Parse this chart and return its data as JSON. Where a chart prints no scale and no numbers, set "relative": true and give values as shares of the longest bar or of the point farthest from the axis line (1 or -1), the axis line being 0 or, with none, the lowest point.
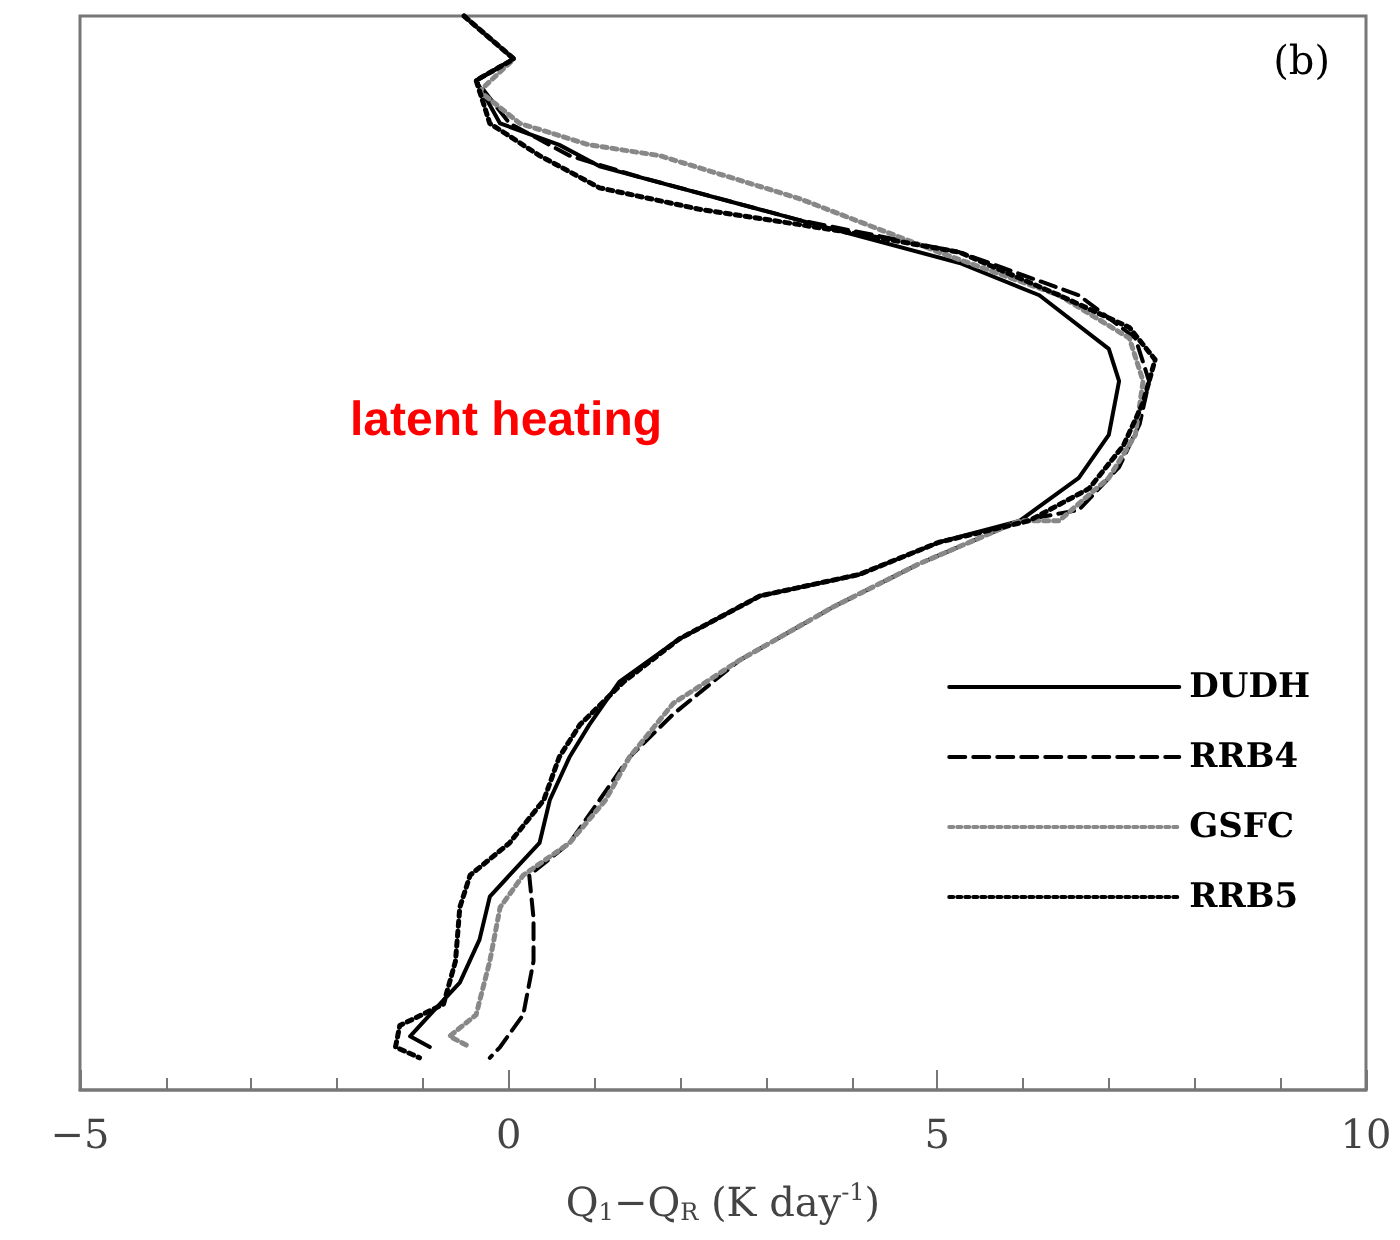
{
  "chart_data": {
    "type": "line",
    "relative": true,
    "tick_labels": "x",
    "xlabel": "Q$_{1}$−Q$_{R}$ (K day$^{-1}$)",
    "xlim": [
      -5,
      10
    ],
    "xticks": [
      -5,
      0,
      5,
      10
    ],
    "legend": "bottom right",
    "annotations": [
      "(b)",
      "latent heating"
    ],
    "series": [
      {
        "name": "DUDH",
        "color": "#000000",
        "line_style": "solid",
        "x": [
          -0.52,
          0.06,
          -0.38,
          -0.1,
          0.59,
          1.06,
          3.39,
          5.26,
          6.19,
          7.0,
          7.12,
          7.0,
          6.65,
          5.96,
          5.02,
          4.09,
          2.93,
          1.99,
          1.29,
          0.94,
          0.71,
          0.48,
          0.36,
          0.01,
          -0.22,
          -0.34,
          -0.57,
          -0.92,
          -1.15,
          -0.92
        ],
        "values": [
          1.0,
          0.96,
          0.94,
          0.9,
          0.88,
          0.86,
          0.81,
          0.77,
          0.74,
          0.69,
          0.66,
          0.61,
          0.57,
          0.53,
          0.51,
          0.48,
          0.46,
          0.42,
          0.38,
          0.34,
          0.31,
          0.27,
          0.23,
          0.2,
          0.18,
          0.14,
          0.1,
          0.07,
          0.05,
          0.04
        ]
      },
      {
        "name": "RRB4",
        "color": "#000000",
        "line_style": "dashed",
        "x": [
          -0.52,
          0.06,
          -0.38,
          0.01,
          0.71,
          1.53,
          3.39,
          5.26,
          6.65,
          7.31,
          7.47,
          7.36,
          7.12,
          6.65,
          5.96,
          4.79,
          3.79,
          2.69,
          1.92,
          1.41,
          1.06,
          0.71,
          0.24,
          0.29,
          0.29,
          0.17,
          -0.1,
          -0.22
        ],
        "values": [
          1.0,
          0.96,
          0.94,
          0.9,
          0.87,
          0.85,
          0.81,
          0.78,
          0.74,
          0.7,
          0.66,
          0.62,
          0.58,
          0.54,
          0.53,
          0.49,
          0.45,
          0.4,
          0.35,
          0.31,
          0.27,
          0.23,
          0.2,
          0.16,
          0.12,
          0.07,
          0.04,
          0.03
        ]
      },
      {
        "name": "GSFC",
        "color": "#888888",
        "line_style": "dotted",
        "x": [
          -0.52,
          0.06,
          -0.34,
          0.13,
          0.94,
          1.76,
          3.39,
          5.02,
          6.42,
          7.24,
          7.4,
          7.31,
          7.0,
          6.42,
          5.96,
          4.79,
          3.79,
          2.69,
          1.92,
          1.41,
          1.13,
          0.71,
          0.17,
          -0.1,
          -0.22,
          -0.38,
          -0.69,
          -0.45
        ],
        "values": [
          1.0,
          0.96,
          0.93,
          0.9,
          0.88,
          0.87,
          0.83,
          0.78,
          0.74,
          0.7,
          0.66,
          0.61,
          0.57,
          0.53,
          0.53,
          0.49,
          0.45,
          0.4,
          0.36,
          0.31,
          0.27,
          0.23,
          0.2,
          0.17,
          0.12,
          0.07,
          0.05,
          0.04
        ]
      },
      {
        "name": "RRB5",
        "color": "#000000",
        "line_style": "dotted",
        "x": [
          -0.52,
          0.06,
          -0.38,
          -0.22,
          0.36,
          1.06,
          2.23,
          3.86,
          5.26,
          6.42,
          7.24,
          7.54,
          7.4,
          7.17,
          6.77,
          6.07,
          5.02,
          4.09,
          2.93,
          1.99,
          1.34,
          0.83,
          0.59,
          0.41,
          0.01,
          -0.45,
          -0.57,
          -0.62,
          -0.76,
          -1.27,
          -1.32,
          -1.04
        ],
        "values": [
          1.0,
          0.96,
          0.94,
          0.9,
          0.87,
          0.84,
          0.82,
          0.8,
          0.78,
          0.74,
          0.71,
          0.68,
          0.64,
          0.6,
          0.56,
          0.53,
          0.51,
          0.48,
          0.46,
          0.42,
          0.38,
          0.34,
          0.31,
          0.27,
          0.23,
          0.2,
          0.17,
          0.12,
          0.08,
          0.06,
          0.04,
          0.03
        ]
      }
    ]
  }
}
